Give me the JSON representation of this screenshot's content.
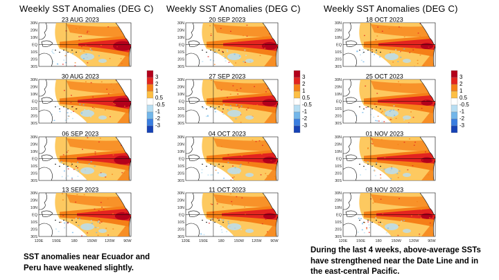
{
  "map_title": "Weekly SST Anomalies (DEG C)",
  "columns": [
    {
      "title": "Weekly SST Anomalies (DEG C)",
      "panels": [
        "23 AUG 2023",
        "30 AUG 2023",
        "06 SEP 2023",
        "13 SEP 2023"
      ]
    },
    {
      "title": "Weekly SST Anomalies (DEG C)",
      "panels": [
        "20 SEP 2023",
        "27 SEP 2023",
        "04 OCT 2023",
        "11 OCT 2023"
      ]
    },
    {
      "title": "Weekly SST Anomalies (DEG C)",
      "panels": [
        "18 OCT 2023",
        "25 OCT 2023",
        "01 NOV 2023",
        "08 NOV 2023"
      ]
    }
  ],
  "lat_labels": [
    "30N",
    "20N",
    "10N",
    "EQ",
    "10S",
    "20S",
    "30S"
  ],
  "lon_labels": [
    "120E",
    "150E",
    "180",
    "150W",
    "120W",
    "90W"
  ],
  "legend": {
    "labels": [
      "3",
      "2",
      "1",
      "0.5",
      "-0.5",
      "-1",
      "-2",
      "-3"
    ],
    "colors": [
      "#b3001b",
      "#e3241f",
      "#f57f17",
      "#fdbf44",
      "#ffffff",
      "#b8def2",
      "#72b6e9",
      "#3a7ee0",
      "#1743b5"
    ]
  },
  "captions": {
    "left": "SST anomalies near Ecuador and Peru have weakened slightly.",
    "right": "During the last 4 weeks, above-average SSTs have strengthened near the Date Line and in the east-central Pacific."
  }
}
